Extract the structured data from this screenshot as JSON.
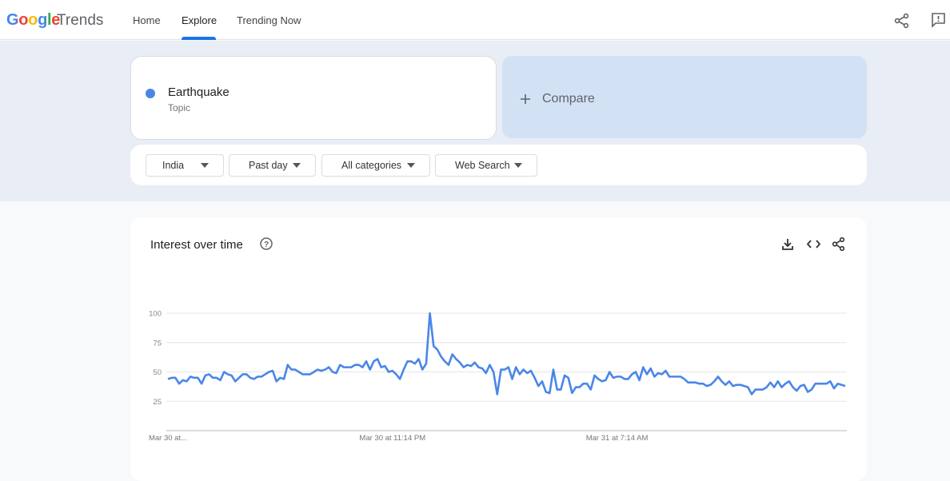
{
  "header": {
    "brand": "Google",
    "product": "Trends",
    "nav": [
      "Home",
      "Explore",
      "Trending Now"
    ]
  },
  "search": {
    "term": "Earthquake",
    "kind": "Topic",
    "compare": "Compare"
  },
  "filters": [
    "India",
    "Past day",
    "All categories",
    "Web Search"
  ],
  "chart_data": {
    "type": "line",
    "title": "Interest over time",
    "color": "#4a86e8",
    "categories": [
      "Mar 30 at...",
      null,
      null,
      null,
      null,
      null,
      null,
      null,
      null,
      null,
      null,
      null,
      null,
      null,
      null,
      null,
      null,
      null,
      null,
      null,
      null,
      null,
      null,
      null,
      null,
      null,
      null,
      null,
      null,
      null,
      null,
      null,
      null,
      null,
      null,
      null,
      null,
      null,
      null,
      null,
      null,
      null,
      null,
      null,
      null,
      null,
      null,
      null,
      null,
      null,
      null,
      null,
      null,
      null,
      null,
      null,
      null,
      null,
      null,
      null,
      "Mar 30 at 11:14 PM",
      null,
      null,
      null,
      null,
      null,
      null,
      null,
      null,
      null,
      null,
      null,
      null,
      null,
      null,
      null,
      null,
      null,
      null,
      null,
      null,
      null,
      null,
      null,
      null,
      null,
      null,
      null,
      null,
      null,
      null,
      null,
      null,
      null,
      null,
      null,
      null,
      null,
      null,
      null,
      null,
      null,
      null,
      null,
      null,
      null,
      null,
      null,
      null,
      null,
      null,
      null,
      null,
      null,
      null,
      null,
      null,
      null,
      null,
      null,
      "Mar 31 at 7:14 AM",
      null,
      null,
      null,
      null,
      null,
      null,
      null,
      null,
      null,
      null,
      null,
      null,
      null,
      null,
      null,
      null,
      null,
      null,
      null,
      null,
      null,
      null,
      null,
      null,
      null,
      null,
      null,
      null,
      null,
      null,
      null,
      null,
      null,
      null,
      null,
      null,
      null,
      null,
      null,
      null,
      null,
      null,
      null,
      null,
      null,
      null,
      null,
      null,
      null,
      null,
      null,
      null,
      null,
      null,
      null,
      null,
      null,
      null,
      null,
      null,
      null
    ],
    "values": [
      44,
      45,
      45,
      40,
      43,
      42,
      46,
      45,
      45,
      40,
      47,
      48,
      45,
      45,
      43,
      50,
      48,
      47,
      42,
      45,
      48,
      48,
      45,
      44,
      46,
      46,
      48,
      50,
      51,
      42,
      45,
      44,
      56,
      52,
      52,
      50,
      48,
      48,
      48,
      50,
      52,
      51,
      52,
      54,
      50,
      49,
      56,
      54,
      54,
      54,
      56,
      56,
      54,
      59,
      52,
      59,
      61,
      54,
      55,
      50,
      51,
      48,
      44,
      52,
      59,
      59,
      57,
      61,
      52,
      57,
      100,
      72,
      69,
      63,
      59,
      56,
      65,
      61,
      58,
      54,
      56,
      55,
      58,
      54,
      53,
      49,
      56,
      50,
      31,
      52,
      52,
      54,
      44,
      54,
      48,
      52,
      49,
      51,
      45,
      38,
      42,
      33,
      32,
      52,
      35,
      35,
      47,
      45,
      32,
      37,
      37,
      40,
      40,
      35,
      47,
      44,
      42,
      43,
      50,
      45,
      46,
      46,
      44,
      44,
      48,
      50,
      43,
      54,
      48,
      53,
      46,
      49,
      48,
      51,
      46,
      46,
      46,
      46,
      44,
      41,
      41,
      41,
      40,
      40,
      38,
      39,
      42,
      46,
      42,
      39,
      42,
      38,
      39,
      39,
      38,
      37,
      31,
      35,
      35,
      35,
      37,
      41,
      37,
      42,
      37,
      40,
      42,
      37,
      34,
      38,
      39,
      33,
      35,
      40,
      40,
      40,
      40,
      42,
      36,
      40,
      39,
      38
    ],
    "ylim": [
      0,
      100
    ],
    "yticks": [
      25,
      50,
      75,
      100
    ],
    "grid": true
  }
}
